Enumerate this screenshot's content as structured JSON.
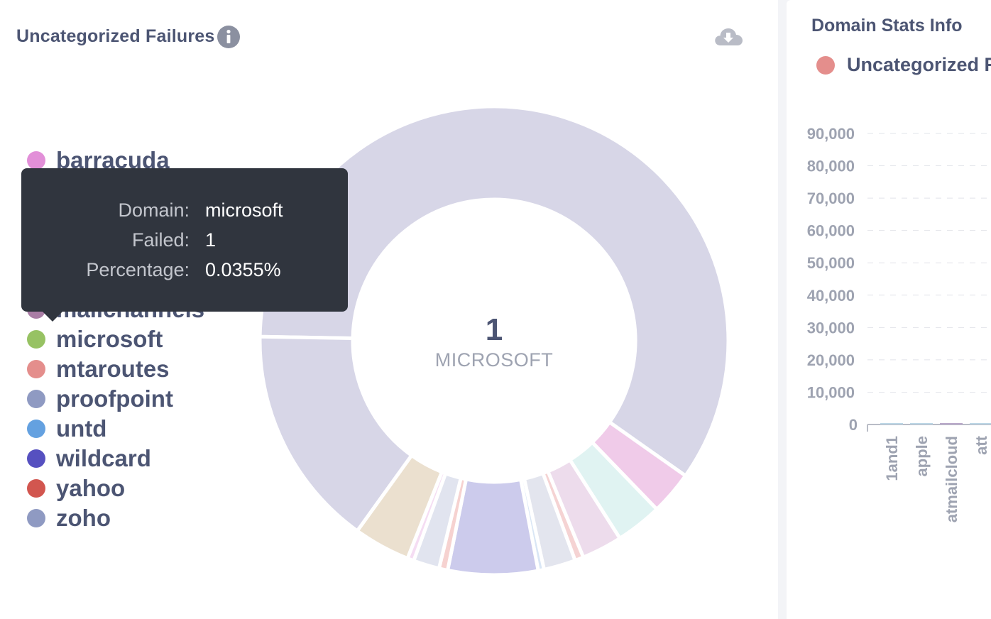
{
  "left_card": {
    "title": "Uncategorized Failures",
    "info_icon": "info-icon",
    "download_icon": "cloud-download-icon"
  },
  "legend": [
    {
      "label": "barracuda",
      "color": "#e28fd8"
    },
    {
      "label": "mailchannels",
      "color": "#a97da5"
    },
    {
      "label": "microsoft",
      "color": "#97c263"
    },
    {
      "label": "mtaroutes",
      "color": "#e48e8c"
    },
    {
      "label": "proofpoint",
      "color": "#8f9ac2"
    },
    {
      "label": "untd",
      "color": "#64a1e0"
    },
    {
      "label": "wildcard",
      "color": "#5650c0"
    },
    {
      "label": "yahoo",
      "color": "#d2564f"
    },
    {
      "label": "zoho",
      "color": "#8f9ac2"
    }
  ],
  "donut": {
    "center_value": "1",
    "center_label": "MICROSOFT",
    "slices": [
      {
        "color": "#d7d6e7",
        "value": 59.5
      },
      {
        "color": "#f0cbe9",
        "value": 3
      },
      {
        "color": "#e0f3f2",
        "value": 3.2
      },
      {
        "color": "#eddcec",
        "value": 2.8
      },
      {
        "color": "#f5d3d3",
        "value": 0.6
      },
      {
        "color": "#e3e5ee",
        "value": 2.2
      },
      {
        "color": "#d9e6f5",
        "value": 0.4
      },
      {
        "color": "#cccbec",
        "value": 6.2
      },
      {
        "color": "#f6d2d0",
        "value": 0.6
      },
      {
        "color": "#e1e4ef",
        "value": 1.8
      },
      {
        "color": "#f5ddf3",
        "value": 0.45
      },
      {
        "color": "#ebe0cf",
        "value": 3.9
      },
      {
        "color": "#d7d6e7",
        "value": 15.35
      }
    ]
  },
  "tooltip": {
    "rows": [
      {
        "key": "Domain:",
        "value": "microsoft"
      },
      {
        "key": "Failed:",
        "value": "1"
      },
      {
        "key": "Percentage:",
        "value": "0.0355%"
      }
    ]
  },
  "right_card": {
    "title": "Domain Stats Info",
    "legend_label": "Uncategorized Fa",
    "legend_color": "#e48e8c"
  },
  "chart_data": {
    "type": "bar",
    "categories": [
      "1and1",
      "apple",
      "atmailcloud",
      "att"
    ],
    "series": [
      {
        "values": [
          100,
          250,
          450,
          250
        ]
      }
    ],
    "ylim": [
      0,
      90000
    ],
    "yticks": [
      "90,000",
      "80,000",
      "70,000",
      "60,000",
      "50,000",
      "40,000",
      "30,000",
      "20,000",
      "10,000",
      "0"
    ],
    "grid": true
  }
}
